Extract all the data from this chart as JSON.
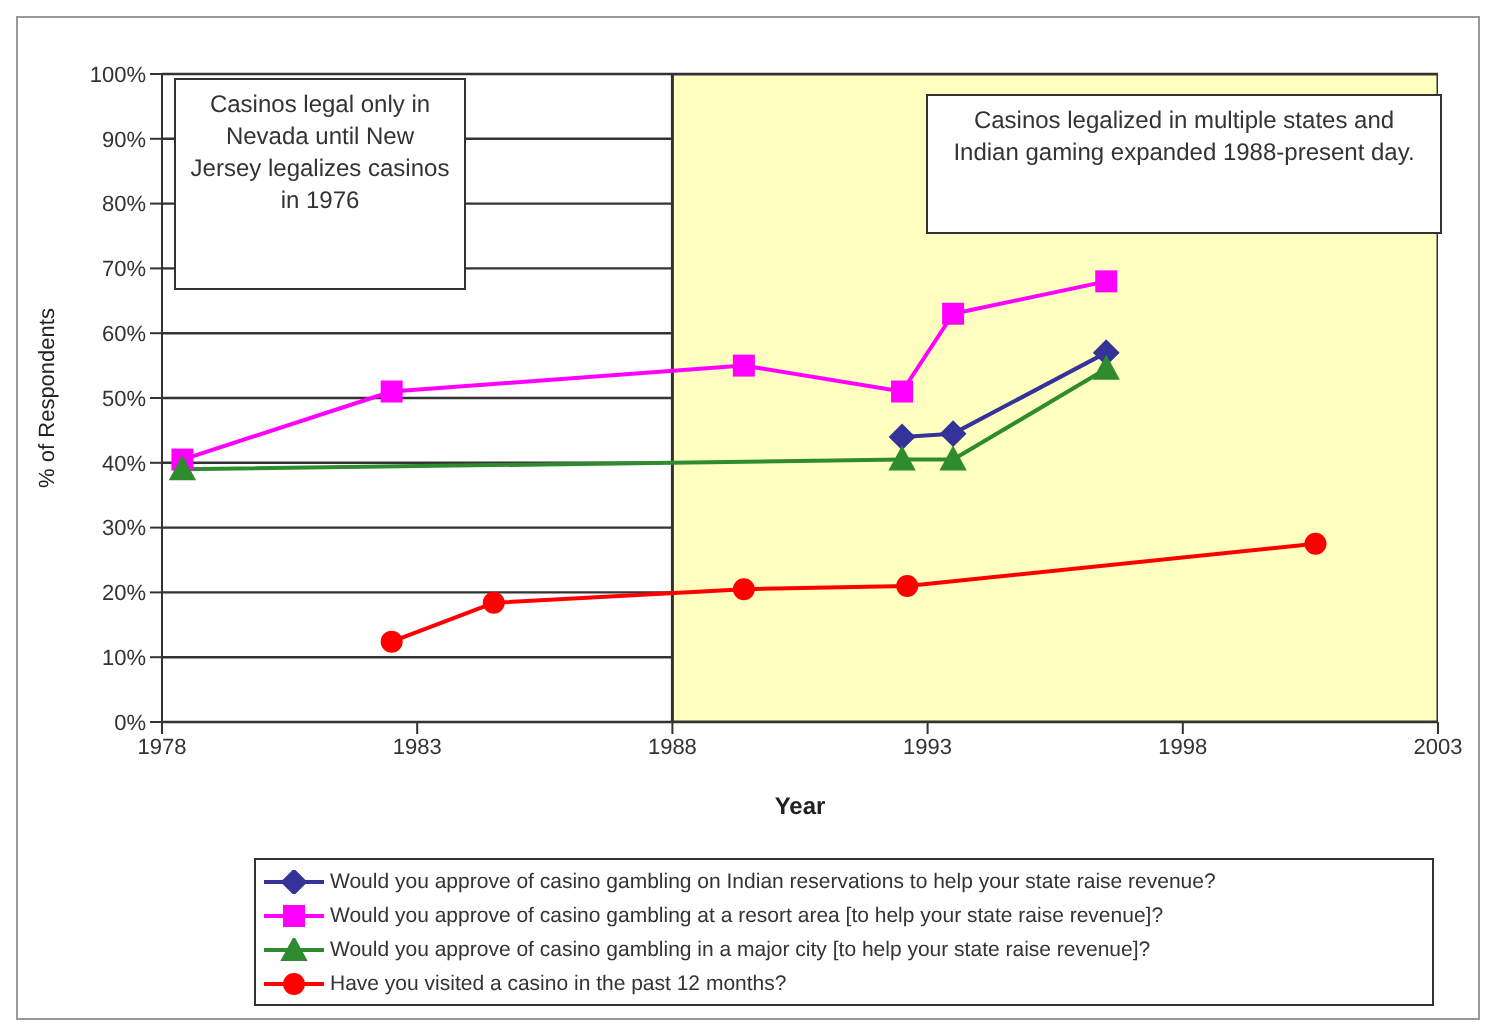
{
  "chart_data": {
    "type": "line",
    "xlabel": "Year",
    "ylabel": "% of Respondents",
    "xlim": [
      1978,
      2003
    ],
    "xticks": [
      1978,
      1983,
      1988,
      1993,
      1998,
      2003
    ],
    "ylim": [
      0,
      100
    ],
    "yticks": [
      {
        "value": 0,
        "label": "0%"
      },
      {
        "value": 10,
        "label": "10%"
      },
      {
        "value": 20,
        "label": "20%"
      },
      {
        "value": 30,
        "label": "30%"
      },
      {
        "value": 40,
        "label": "40%"
      },
      {
        "value": 50,
        "label": "50%"
      },
      {
        "value": 60,
        "label": "60%"
      },
      {
        "value": 70,
        "label": "70%"
      },
      {
        "value": 80,
        "label": "80%"
      },
      {
        "value": 90,
        "label": "90%"
      },
      {
        "value": 100,
        "label": "100%"
      }
    ],
    "grid": "y",
    "legend": "bottom",
    "bands": [
      {
        "axis": "x",
        "from": 1988,
        "to": 2003,
        "color": "#ffffc0"
      }
    ],
    "annotations": [
      "Casinos legal only in Nevada until New Jersey legalizes casinos in 1976",
      "Casinos legalized in multiple states and Indian gaming expanded 1988-present day."
    ],
    "series": [
      {
        "name": "Would you approve of casino gambling on Indian reservations to help your state raise revenue?",
        "color": "#333399",
        "marker": "diamond",
        "x": [
          1992.5,
          1993.5,
          1996.5
        ],
        "values": [
          44,
          44.5,
          57
        ]
      },
      {
        "name": "Would you approve of casino gambling at a resort area [to help your state raise revenue]?",
        "color": "#ff00ff",
        "marker": "square",
        "x": [
          1978.4,
          1982.5,
          1989.4,
          1992.5,
          1993.5,
          1996.5
        ],
        "values": [
          40.5,
          51,
          55,
          51,
          63,
          68
        ]
      },
      {
        "name": "Would you approve of casino gambling in a major city [to help your state raise revenue]?",
        "color": "#2e8b2e",
        "marker": "triangle",
        "x": [
          1978.4,
          1992.5,
          1993.5,
          1996.5
        ],
        "values": [
          39,
          40.5,
          40.5,
          54.5
        ]
      },
      {
        "name": "Have you visited a casino in the past 12 months?",
        "color": "#ff0000",
        "marker": "circle",
        "x": [
          1982.5,
          1984.5,
          1989.4,
          1992.6,
          2000.6
        ],
        "values": [
          12.4,
          18.4,
          20.5,
          21,
          27.5
        ]
      }
    ]
  }
}
